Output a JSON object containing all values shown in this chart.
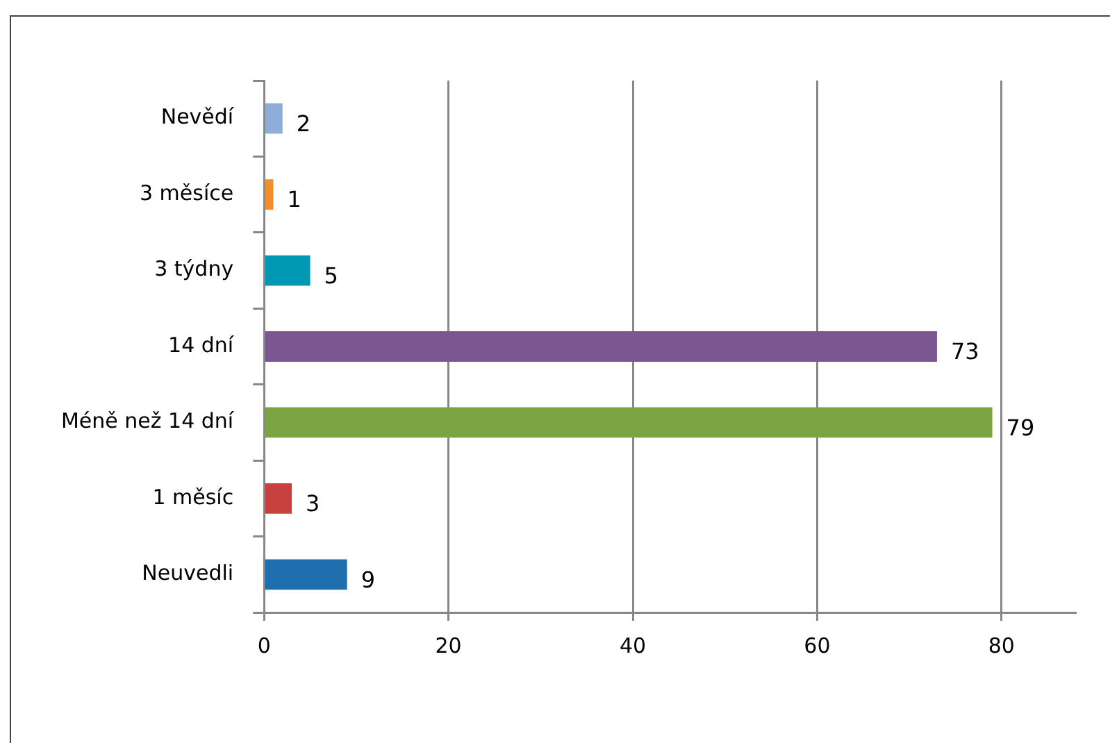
{
  "chart_data": {
    "type": "bar",
    "orientation": "horizontal",
    "categories": [
      "Nevědí",
      "3 měsíce",
      "3 týdny",
      "14 dní",
      "Méně než 14 dní",
      "1 měsíc",
      "Neuvedli"
    ],
    "values": [
      2,
      1,
      5,
      73,
      79,
      3,
      9
    ],
    "colors": [
      "#8eaed8",
      "#f28e2b",
      "#0099b4",
      "#7b5690",
      "#7ba443",
      "#c9413e",
      "#1f6fae"
    ],
    "xlim": [
      0,
      88
    ],
    "xticks": [
      0,
      20,
      40,
      60,
      80
    ],
    "grid": "x",
    "data_labels": true,
    "legend": false
  }
}
